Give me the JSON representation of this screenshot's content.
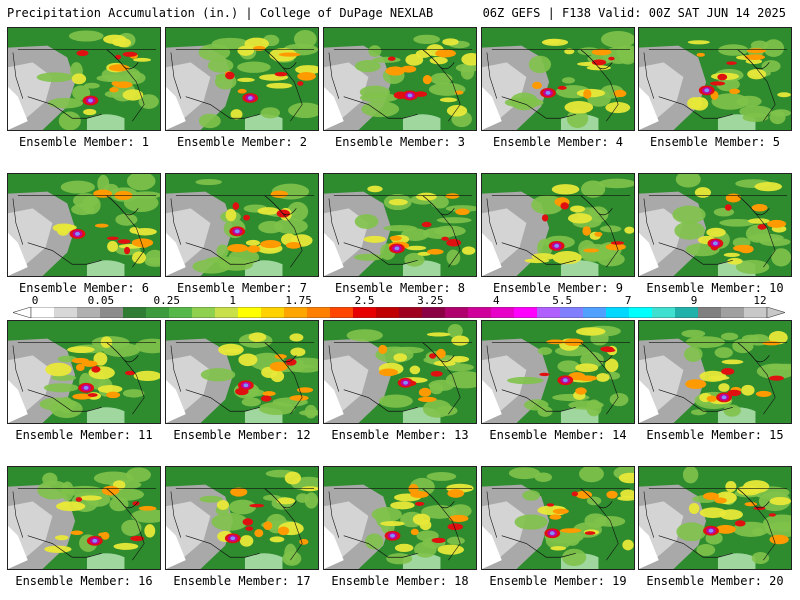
{
  "header": {
    "title": "Precipitation Accumulation (in.) | College of DuPage NEXLAB",
    "run_info": "06Z GEFS | F138 Valid: 00Z SAT JUN 14 2025"
  },
  "member_prefix": "Ensemble Member: ",
  "members": [
    1,
    2,
    3,
    4,
    5,
    6,
    7,
    8,
    9,
    10,
    11,
    12,
    13,
    14,
    15,
    16,
    17,
    18,
    19,
    20
  ],
  "colorbar": {
    "labels": [
      "0",
      "0.05",
      "0.25",
      "1",
      "1.75",
      "2.5",
      "3.25",
      "4",
      "5.5",
      "7",
      "9",
      "12"
    ],
    "colors": [
      "#ffffff",
      "#d8d8d8",
      "#b0b0b0",
      "#8c8c8c",
      "#2e7d32",
      "#3d9b3d",
      "#56b848",
      "#8fd14f",
      "#c9e04a",
      "#ffff00",
      "#ffd200",
      "#ffa500",
      "#ff7f00",
      "#ff4500",
      "#e60000",
      "#c00000",
      "#a00020",
      "#8b0045",
      "#b0006e",
      "#d0009b",
      "#e600c8",
      "#ff00ff",
      "#b060ff",
      "#8080ff",
      "#4fa0ff",
      "#00d8ff",
      "#00ffff",
      "#40e0d0",
      "#20b2aa",
      "#808080",
      "#a0a0a0",
      "#c8c8c8"
    ]
  },
  "map_colors": {
    "water": "#ffffff",
    "dry": "#a9a9a9",
    "light": "#d4d4d4",
    "green": "#2e8b2e",
    "lightgreen": "#7fc24a",
    "yellow": "#e8e838",
    "orange": "#ff9a00",
    "red": "#e01010",
    "magenta": "#c0009a",
    "blue": "#7f8fff"
  }
}
